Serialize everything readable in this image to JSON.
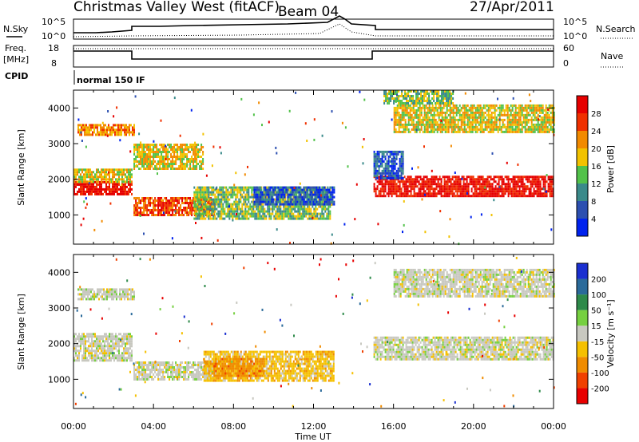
{
  "header": {
    "station": "Christmas Valley West (fitACF)",
    "beam": "Beam 04",
    "date": "27/Apr/2011"
  },
  "top_panels": {
    "nsky_label": "N.Sky",
    "nsearch_label": "N.Search",
    "freq_label_1": "Freq.",
    "freq_label_2": "[MHz]",
    "nave_label": "Nave",
    "cpid_label": "CPID",
    "cpid_value": "normal 150 IF",
    "noise_left_ticks": [
      "10^5",
      "10^0"
    ],
    "noise_right_ticks": [
      "10^5",
      "10^0"
    ],
    "freq_ticks": [
      "18",
      "8"
    ],
    "nave_ticks": [
      "60",
      "0"
    ]
  },
  "axes": {
    "ylabel": "Slant Range [km]",
    "xlabel": "Time UT",
    "x_tick_labels": [
      "00:00",
      "04:00",
      "08:00",
      "12:00",
      "16:00",
      "20:00",
      "00:00"
    ],
    "y_tick_labels": [
      "1000",
      "2000",
      "3000",
      "4000"
    ]
  },
  "power_scale": {
    "title": "Power [dB]",
    "labels": [
      "4",
      "8",
      "12",
      "16",
      "20",
      "24",
      "28"
    ],
    "colors": [
      "#0022ee",
      "#2c4fb0",
      "#3a8a8a",
      "#52c24a",
      "#f2c200",
      "#f28a00",
      "#f03000",
      "#e60000"
    ]
  },
  "velocity_scale": {
    "title": "Velocity [m s⁻¹]",
    "labels": [
      "200",
      "100",
      "50",
      "15",
      "-15",
      "-50",
      "-100",
      "-200"
    ],
    "colors": [
      "#1a2fd0",
      "#2a6a9a",
      "#2e8a4a",
      "#76d040",
      "#c8c8c0",
      "#f5c000",
      "#f08c00",
      "#f04000",
      "#e80000"
    ]
  },
  "chart_data": {
    "type": "heatmap",
    "title": "Christmas Valley West (fitACF)",
    "xlabel": "Time UT",
    "ylabel": "Slant Range [km]",
    "xlim": [
      0,
      24
    ],
    "ylim": [
      180,
      4500
    ],
    "grid": false,
    "frequency_mhz": [
      {
        "start": 0,
        "end": 3,
        "value": 14
      },
      {
        "start": 3,
        "end": 15,
        "value": 11
      },
      {
        "start": 15,
        "end": 24,
        "value": 14
      }
    ],
    "power_bands": [
      {
        "t0": 0.0,
        "t1": 2.9,
        "r0": 1550,
        "r1": 1950,
        "level": 7
      },
      {
        "t0": 0.0,
        "t1": 2.9,
        "r0": 1950,
        "r1": 2300,
        "level": 4
      },
      {
        "t0": 0.2,
        "t1": 3.0,
        "r0": 3250,
        "r1": 3550,
        "level": 5
      },
      {
        "t0": 3.0,
        "t1": 7.0,
        "r0": 1000,
        "r1": 1500,
        "level": 6
      },
      {
        "t0": 3.0,
        "t1": 6.5,
        "r0": 2300,
        "r1": 3000,
        "level": 4
      },
      {
        "t0": 6.0,
        "t1": 12.8,
        "r0": 900,
        "r1": 1800,
        "level": 3
      },
      {
        "t0": 9.0,
        "t1": 13.0,
        "r0": 1300,
        "r1": 1800,
        "level": 1
      },
      {
        "t0": 15.0,
        "t1": 24.0,
        "r0": 1550,
        "r1": 2100,
        "level": 7
      },
      {
        "t0": 15.0,
        "t1": 16.5,
        "r0": 2000,
        "r1": 2800,
        "level": 1
      },
      {
        "t0": 16.0,
        "t1": 24.0,
        "r0": 3300,
        "r1": 4100,
        "level": 4
      },
      {
        "t0": 15.5,
        "t1": 19.0,
        "r0": 4100,
        "r1": 4500,
        "level": 3
      }
    ],
    "velocity_bands": [
      {
        "t0": 0.0,
        "t1": 2.9,
        "r0": 1550,
        "r1": 2300,
        "level": 4
      },
      {
        "t0": 0.2,
        "t1": 3.0,
        "r0": 3250,
        "r1": 3550,
        "level": 4
      },
      {
        "t0": 3.0,
        "t1": 7.0,
        "r0": 1000,
        "r1": 1500,
        "level": 4
      },
      {
        "t0": 6.5,
        "t1": 13.0,
        "r0": 950,
        "r1": 1800,
        "level": 5
      },
      {
        "t0": 7.0,
        "t1": 9.5,
        "r0": 1100,
        "r1": 1600,
        "level": 6
      },
      {
        "t0": 15.0,
        "t1": 24.0,
        "r0": 1550,
        "r1": 2200,
        "level": 4
      },
      {
        "t0": 16.0,
        "t1": 24.0,
        "r0": 3300,
        "r1": 4100,
        "level": 4
      }
    ]
  }
}
